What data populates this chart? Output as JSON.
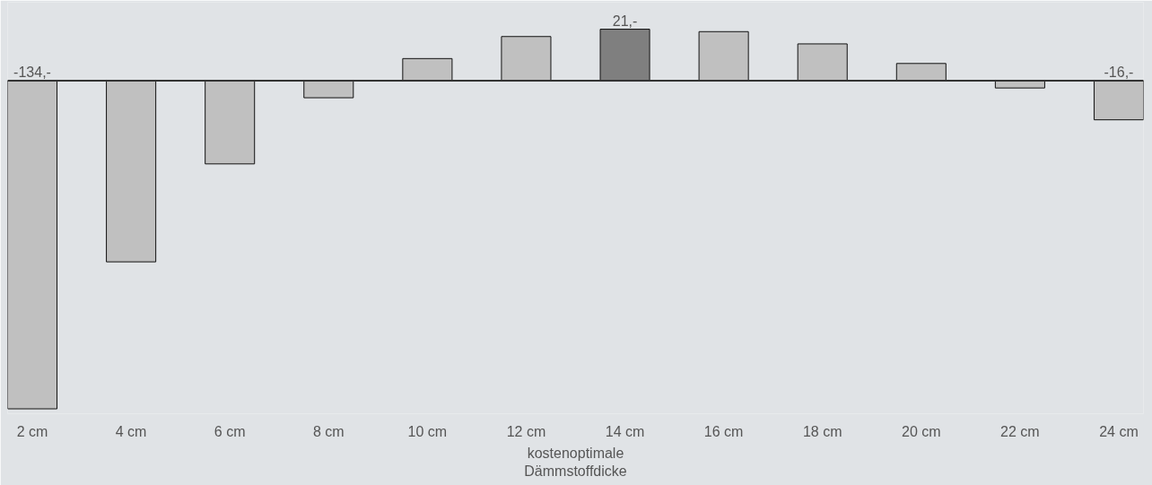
{
  "chart_data": {
    "type": "bar",
    "xlabel": "kostenoptimale\nDämmstoffdicke",
    "categories": [
      "2 cm",
      "4 cm",
      "6 cm",
      "8 cm",
      "10 cm",
      "12 cm",
      "14 cm",
      "16 cm",
      "18 cm",
      "20 cm",
      "22 cm",
      "24 cm"
    ],
    "values": [
      -134,
      -74,
      -34,
      -7,
      9,
      18,
      21,
      20,
      15,
      7,
      -3,
      -16
    ],
    "colors": [
      "#c0c0c0",
      "#c0c0c0",
      "#c0c0c0",
      "#c0c0c0",
      "#c0c0c0",
      "#c0c0c0",
      "#7f7f7f",
      "#c0c0c0",
      "#c0c0c0",
      "#c0c0c0",
      "#c0c0c0",
      "#c0c0c0"
    ],
    "value_labels": [
      "-134,-",
      null,
      null,
      null,
      null,
      null,
      "21,-",
      null,
      null,
      null,
      null,
      "-16,-"
    ],
    "ylim": [
      -136,
      32
    ],
    "tick_labels": "x",
    "ref_lines": [
      {
        "axis": "y",
        "value": 0,
        "color": "#333333"
      }
    ]
  }
}
